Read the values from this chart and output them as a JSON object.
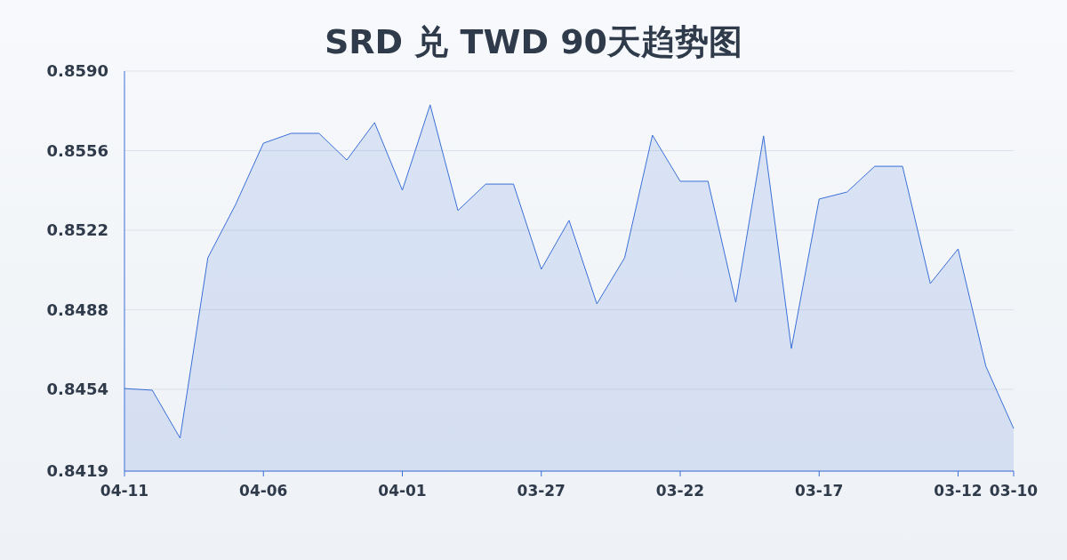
{
  "chart_data": {
    "type": "area",
    "title": "SRD 兑 TWD 90天趋势图",
    "categories": [
      "04-11",
      null,
      null,
      null,
      null,
      "04-06",
      null,
      null,
      null,
      null,
      "04-01",
      null,
      null,
      null,
      null,
      "03-27",
      null,
      null,
      null,
      null,
      "03-22",
      null,
      null,
      null,
      null,
      "03-17",
      null,
      null,
      null,
      null,
      "03-12",
      null,
      "03-10"
    ],
    "series": [
      {
        "color": "#3a6fd8",
        "values": [
          0.84543,
          0.84536,
          0.84331,
          0.85102,
          0.8533,
          0.85592,
          0.85634,
          0.85634,
          0.8552,
          0.8568,
          0.85391,
          0.85756,
          0.85304,
          0.85417,
          0.85417,
          0.85053,
          0.85262,
          0.84905,
          0.85102,
          0.85626,
          0.85429,
          0.85429,
          0.84912,
          0.85623,
          0.84714,
          0.85353,
          0.85383,
          0.85493,
          0.85493,
          0.84992,
          0.8514,
          0.84638,
          0.84372
        ]
      }
    ],
    "ylim": [
      0.8419,
      0.859
    ],
    "yticks": [
      0.8419,
      0.8454,
      0.8488,
      0.8522,
      0.8556,
      {
        "value": 0.859,
        "label": "0.8590"
      }
    ],
    "grid": "y"
  }
}
